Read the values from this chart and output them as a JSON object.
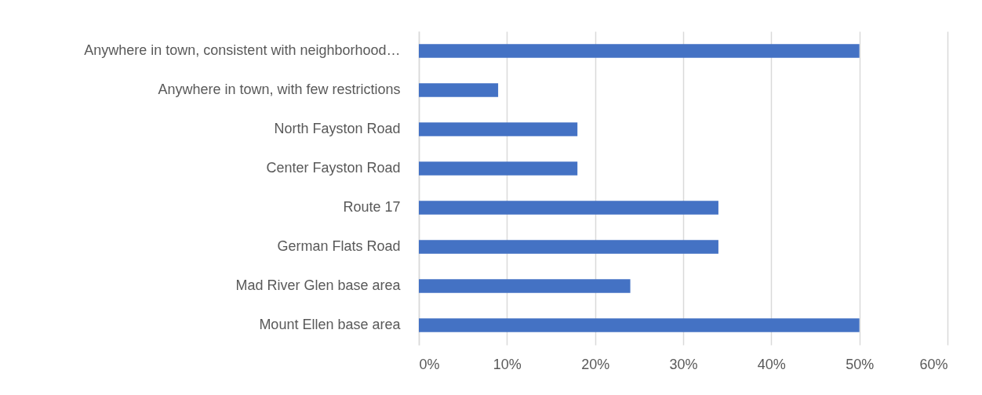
{
  "chart_data": {
    "type": "bar",
    "orientation": "horizontal",
    "categories": [
      "Anywhere in town, consistent with neighborhood…",
      "Anywhere in town, with few restrictions",
      "North Fayston Road",
      "Center Fayston Road",
      "Route 17",
      "German Flats Road",
      "Mad River Glen base area",
      "Mount Ellen base area"
    ],
    "values": [
      50,
      9,
      18,
      18,
      34,
      34,
      24,
      50
    ],
    "color": "#4472c4",
    "xlim": [
      0,
      60
    ],
    "xticks": [
      {
        "value": 0,
        "label": "0%"
      },
      {
        "value": 10,
        "label": "10%"
      },
      {
        "value": 20,
        "label": "20%"
      },
      {
        "value": 30,
        "label": "30%"
      },
      {
        "value": 40,
        "label": "40%"
      },
      {
        "value": 50,
        "label": "50%"
      },
      {
        "value": 60,
        "label": "60%"
      }
    ],
    "grid": "x"
  }
}
